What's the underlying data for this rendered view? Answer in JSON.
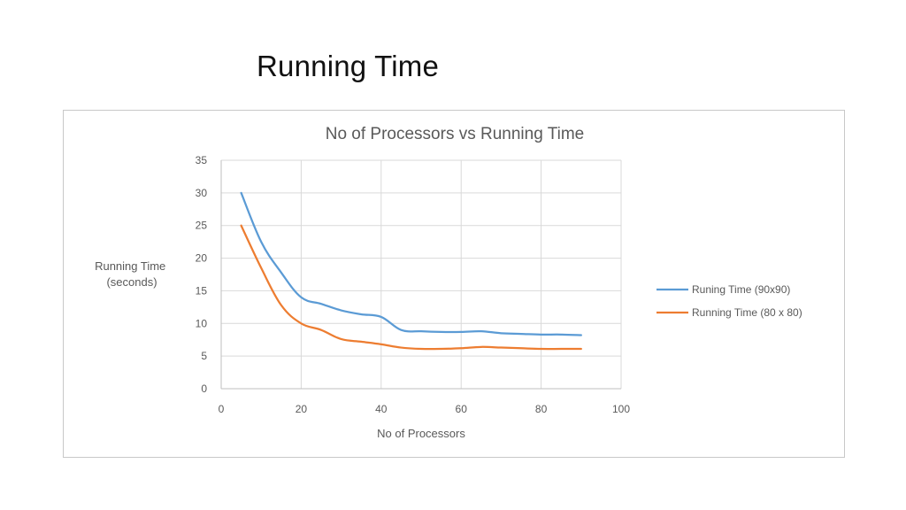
{
  "slide": {
    "title": "Running Time"
  },
  "chart_data": {
    "type": "line",
    "title": "No of Processors vs Running Time",
    "xlabel": "No of Processors",
    "ylabel_lines": [
      "Running Time",
      "(seconds)"
    ],
    "xlim": [
      0,
      100
    ],
    "ylim": [
      0,
      35
    ],
    "xticks": [
      0,
      20,
      40,
      60,
      80,
      100
    ],
    "yticks": [
      0,
      5,
      10,
      15,
      20,
      25,
      30,
      35
    ],
    "grid": true,
    "legend": "right",
    "series": [
      {
        "name": "Runing Time (90x90)",
        "color": "#5b9bd5",
        "points": [
          [
            5,
            30
          ],
          [
            10,
            22.5
          ],
          [
            15,
            17.8
          ],
          [
            20,
            14
          ],
          [
            25,
            13
          ],
          [
            30,
            12
          ],
          [
            35,
            11.4
          ],
          [
            40,
            11
          ],
          [
            45,
            9
          ],
          [
            50,
            8.8
          ],
          [
            55,
            8.7
          ],
          [
            60,
            8.7
          ],
          [
            65,
            8.8
          ],
          [
            70,
            8.5
          ],
          [
            75,
            8.4
          ],
          [
            80,
            8.3
          ],
          [
            85,
            8.3
          ],
          [
            90,
            8.2
          ]
        ]
      },
      {
        "name": "Running Time (80 x 80)",
        "color": "#ed7d31",
        "points": [
          [
            5,
            25
          ],
          [
            10,
            18.5
          ],
          [
            15,
            12.8
          ],
          [
            20,
            10
          ],
          [
            25,
            9
          ],
          [
            30,
            7.6
          ],
          [
            35,
            7.2
          ],
          [
            40,
            6.8
          ],
          [
            45,
            6.3
          ],
          [
            50,
            6.1
          ],
          [
            55,
            6.1
          ],
          [
            60,
            6.2
          ],
          [
            65,
            6.4
          ],
          [
            70,
            6.3
          ],
          [
            75,
            6.2
          ],
          [
            80,
            6.1
          ],
          [
            85,
            6.1
          ],
          [
            90,
            6.1
          ]
        ]
      }
    ]
  }
}
